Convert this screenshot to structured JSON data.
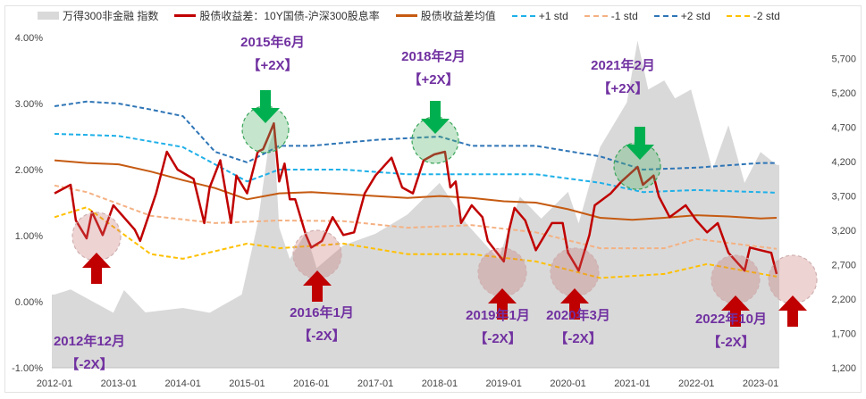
{
  "legend": [
    {
      "label": "万得300非金融 指数",
      "color": "#d9d9d9",
      "style": "area"
    },
    {
      "label": "股债收益差：10Y国债-沪深300股息率",
      "color": "#c00000",
      "style": "solid"
    },
    {
      "label": "股债收益差均值",
      "color": "#c55a11",
      "style": "solid"
    },
    {
      "label": "+1 std",
      "color": "#1fb0e8",
      "style": "dashed"
    },
    {
      "label": "-1 std",
      "color": "#f4b183",
      "style": "dashed"
    },
    {
      "label": "+2 std",
      "color": "#2e75b6",
      "style": "dashed"
    },
    {
      "label": "-2 std",
      "color": "#ffc000",
      "style": "dashed"
    }
  ],
  "chart_data": {
    "type": "line",
    "title": "",
    "x_ticks": [
      "2012-01",
      "2013-01",
      "2014-01",
      "2015-01",
      "2016-01",
      "2017-01",
      "2018-01",
      "2019-01",
      "2020-01",
      "2021-01",
      "2022-01",
      "2023-01"
    ],
    "y_left": {
      "ticks": [
        "-1.00%",
        "0.00%",
        "1.00%",
        "2.00%",
        "3.00%",
        "4.00%"
      ],
      "ylim": [
        -1,
        4
      ],
      "unit": "%"
    },
    "y_right": {
      "ticks": [
        "1,200",
        "1,700",
        "2,200",
        "2,700",
        "3,200",
        "3,700",
        "4,200",
        "4,700",
        "5,200",
        "5,700"
      ],
      "ylim": [
        1200,
        5960
      ]
    },
    "x_range": [
      "2012-01",
      "2023-04"
    ],
    "series": [
      {
        "name": "万得300非金融 指数",
        "axis": "right",
        "kind": "area",
        "points": [
          [
            "2012-01",
            2265
          ],
          [
            "2012-04",
            2340
          ],
          [
            "2012-12",
            2000
          ],
          [
            "2013-02",
            2330
          ],
          [
            "2013-06",
            2005
          ],
          [
            "2014-01",
            2070
          ],
          [
            "2014-06",
            2000
          ],
          [
            "2014-12",
            2265
          ],
          [
            "2015-03",
            3300
          ],
          [
            "2015-05",
            4410
          ],
          [
            "2015-06",
            4650
          ],
          [
            "2015-07",
            3240
          ],
          [
            "2015-09",
            2780
          ],
          [
            "2015-12",
            3170
          ],
          [
            "2016-02",
            2650
          ],
          [
            "2016-07",
            2980
          ],
          [
            "2017-01",
            3150
          ],
          [
            "2017-07",
            3430
          ],
          [
            "2018-01",
            3890
          ],
          [
            "2018-06",
            3300
          ],
          [
            "2018-12",
            2780
          ],
          [
            "2019-04",
            3690
          ],
          [
            "2019-08",
            3370
          ],
          [
            "2020-01",
            3760
          ],
          [
            "2020-03",
            3300
          ],
          [
            "2020-07",
            4410
          ],
          [
            "2020-12",
            5060
          ],
          [
            "2021-02",
            5960
          ],
          [
            "2021-04",
            5250
          ],
          [
            "2021-07",
            5380
          ],
          [
            "2021-09",
            5120
          ],
          [
            "2021-12",
            5250
          ],
          [
            "2022-04",
            4080
          ],
          [
            "2022-07",
            4730
          ],
          [
            "2022-10",
            3890
          ],
          [
            "2023-01",
            4340
          ],
          [
            "2023-04",
            4150
          ]
        ]
      },
      {
        "name": "股债收益差：10Y国债-沪深300股息率",
        "axis": "left",
        "kind": "line",
        "points": [
          [
            "2012-01",
            1.64
          ],
          [
            "2012-04",
            1.77
          ],
          [
            "2012-05",
            1.23
          ],
          [
            "2012-07",
            0.96
          ],
          [
            "2012-08",
            1.36
          ],
          [
            "2012-10",
            1.01
          ],
          [
            "2012-12",
            1.46
          ],
          [
            "2013-04",
            1.09
          ],
          [
            "2013-05",
            0.92
          ],
          [
            "2013-08",
            1.64
          ],
          [
            "2013-10",
            2.27
          ],
          [
            "2013-12",
            2.0
          ],
          [
            "2014-03",
            1.86
          ],
          [
            "2014-05",
            1.19
          ],
          [
            "2014-06",
            1.73
          ],
          [
            "2014-08",
            2.14
          ],
          [
            "2014-10",
            1.19
          ],
          [
            "2014-11",
            1.91
          ],
          [
            "2015-01",
            1.64
          ],
          [
            "2015-03",
            2.27
          ],
          [
            "2015-04",
            2.31
          ],
          [
            "2015-05",
            2.5
          ],
          [
            "2015-06",
            2.7
          ],
          [
            "2015-07",
            1.82
          ],
          [
            "2015-08",
            2.09
          ],
          [
            "2015-09",
            1.55
          ],
          [
            "2015-10",
            1.55
          ],
          [
            "2015-12",
            1.01
          ],
          [
            "2016-01",
            0.82
          ],
          [
            "2016-03",
            0.92
          ],
          [
            "2016-05",
            1.28
          ],
          [
            "2016-07",
            1.01
          ],
          [
            "2016-09",
            1.05
          ],
          [
            "2016-11",
            1.64
          ],
          [
            "2017-01",
            1.91
          ],
          [
            "2017-04",
            2.18
          ],
          [
            "2017-06",
            1.73
          ],
          [
            "2017-08",
            1.64
          ],
          [
            "2017-10",
            2.14
          ],
          [
            "2017-12",
            2.23
          ],
          [
            "2018-02",
            2.27
          ],
          [
            "2018-03",
            1.73
          ],
          [
            "2018-04",
            1.82
          ],
          [
            "2018-05",
            1.19
          ],
          [
            "2018-07",
            1.46
          ],
          [
            "2018-09",
            1.28
          ],
          [
            "2018-10",
            0.92
          ],
          [
            "2019-01",
            0.61
          ],
          [
            "2019-02",
            1.09
          ],
          [
            "2019-03",
            1.42
          ],
          [
            "2019-05",
            1.23
          ],
          [
            "2019-07",
            0.78
          ],
          [
            "2019-10",
            1.19
          ],
          [
            "2019-12",
            1.19
          ],
          [
            "2020-01",
            0.74
          ],
          [
            "2020-03",
            0.47
          ],
          [
            "2020-04",
            0.74
          ],
          [
            "2020-05",
            1.01
          ],
          [
            "2020-06",
            1.46
          ],
          [
            "2020-09",
            1.64
          ],
          [
            "2020-11",
            1.82
          ],
          [
            "2021-02",
            2.04
          ],
          [
            "2021-03",
            1.77
          ],
          [
            "2021-05",
            1.91
          ],
          [
            "2021-06",
            1.59
          ],
          [
            "2021-08",
            1.28
          ],
          [
            "2021-11",
            1.46
          ],
          [
            "2022-01",
            1.23
          ],
          [
            "2022-03",
            1.05
          ],
          [
            "2022-05",
            1.19
          ],
          [
            "2022-07",
            0.74
          ],
          [
            "2022-10",
            0.47
          ],
          [
            "2022-11",
            0.82
          ],
          [
            "2023-01",
            0.78
          ],
          [
            "2023-03",
            0.74
          ],
          [
            "2023-04",
            0.42
          ]
        ]
      },
      {
        "name": "股债收益差均值",
        "axis": "left",
        "kind": "line",
        "points": [
          [
            "2012-01",
            2.14
          ],
          [
            "2012-07",
            2.1
          ],
          [
            "2013-01",
            2.08
          ],
          [
            "2013-07",
            1.97
          ],
          [
            "2014-01",
            1.84
          ],
          [
            "2014-07",
            1.72
          ],
          [
            "2015-01",
            1.55
          ],
          [
            "2015-07",
            1.64
          ],
          [
            "2016-01",
            1.66
          ],
          [
            "2016-07",
            1.63
          ],
          [
            "2017-01",
            1.6
          ],
          [
            "2017-07",
            1.57
          ],
          [
            "2018-01",
            1.6
          ],
          [
            "2018-07",
            1.57
          ],
          [
            "2019-01",
            1.52
          ],
          [
            "2019-07",
            1.5
          ],
          [
            "2020-01",
            1.4
          ],
          [
            "2020-07",
            1.27
          ],
          [
            "2021-01",
            1.24
          ],
          [
            "2021-07",
            1.27
          ],
          [
            "2022-01",
            1.31
          ],
          [
            "2022-07",
            1.29
          ],
          [
            "2023-01",
            1.26
          ],
          [
            "2023-04",
            1.27
          ]
        ]
      },
      {
        "name": "+1 std",
        "axis": "left",
        "kind": "dashed",
        "points": [
          [
            "2012-01",
            2.54
          ],
          [
            "2013-01",
            2.51
          ],
          [
            "2014-01",
            2.34
          ],
          [
            "2015-01",
            1.82
          ],
          [
            "2015-07",
            2.0
          ],
          [
            "2016-07",
            2.0
          ],
          [
            "2017-07",
            1.93
          ],
          [
            "2018-07",
            1.93
          ],
          [
            "2019-07",
            1.93
          ],
          [
            "2020-07",
            1.8
          ],
          [
            "2021-03",
            1.66
          ],
          [
            "2022-01",
            1.69
          ],
          [
            "2023-04",
            1.65
          ]
        ]
      },
      {
        "name": "-1 std",
        "axis": "left",
        "kind": "dashed",
        "points": [
          [
            "2012-01",
            1.76
          ],
          [
            "2012-07",
            1.66
          ],
          [
            "2013-07",
            1.3
          ],
          [
            "2014-07",
            1.19
          ],
          [
            "2015-07",
            1.23
          ],
          [
            "2016-07",
            1.22
          ],
          [
            "2017-07",
            1.12
          ],
          [
            "2018-07",
            1.16
          ],
          [
            "2019-07",
            1.05
          ],
          [
            "2020-07",
            0.81
          ],
          [
            "2021-07",
            0.81
          ],
          [
            "2022-01",
            0.95
          ],
          [
            "2023-04",
            0.8
          ]
        ]
      },
      {
        "name": "+2 std",
        "axis": "left",
        "kind": "dashed",
        "points": [
          [
            "2012-01",
            2.96
          ],
          [
            "2012-07",
            3.03
          ],
          [
            "2013-01",
            3.0
          ],
          [
            "2013-07",
            2.91
          ],
          [
            "2014-01",
            2.81
          ],
          [
            "2014-07",
            2.27
          ],
          [
            "2015-01",
            2.11
          ],
          [
            "2015-07",
            2.36
          ],
          [
            "2016-01",
            2.36
          ],
          [
            "2017-01",
            2.45
          ],
          [
            "2018-01",
            2.5
          ],
          [
            "2018-07",
            2.36
          ],
          [
            "2019-07",
            2.36
          ],
          [
            "2020-07",
            2.2
          ],
          [
            "2021-03",
            2.0
          ],
          [
            "2022-01",
            2.03
          ],
          [
            "2023-01",
            2.1
          ],
          [
            "2023-04",
            2.1
          ]
        ]
      },
      {
        "name": "-2 std",
        "axis": "left",
        "kind": "dashed",
        "points": [
          [
            "2012-01",
            1.28
          ],
          [
            "2012-07",
            1.43
          ],
          [
            "2013-07",
            0.72
          ],
          [
            "2014-01",
            0.65
          ],
          [
            "2015-01",
            0.88
          ],
          [
            "2015-07",
            0.81
          ],
          [
            "2016-07",
            0.88
          ],
          [
            "2017-07",
            0.72
          ],
          [
            "2018-07",
            0.72
          ],
          [
            "2019-07",
            0.61
          ],
          [
            "2020-07",
            0.36
          ],
          [
            "2021-07",
            0.42
          ],
          [
            "2022-03",
            0.57
          ],
          [
            "2023-04",
            0.38
          ]
        ]
      }
    ],
    "annotations": [
      {
        "date": "2012-12",
        "label": "2012年12月",
        "tag": "【-2X】",
        "signal": "low"
      },
      {
        "date": "2015-06",
        "label": "2015年6月",
        "tag": "【+2X】",
        "signal": "high"
      },
      {
        "date": "2016-01",
        "label": "2016年1月",
        "tag": "【-2X】",
        "signal": "low"
      },
      {
        "date": "2018-02",
        "label": "2018年2月",
        "tag": "【+2X】",
        "signal": "high"
      },
      {
        "date": "2019-01",
        "label": "2019年1月",
        "tag": "【-2X】",
        "signal": "low"
      },
      {
        "date": "2020-03",
        "label": "2020年3月",
        "tag": "【-2X】",
        "signal": "low"
      },
      {
        "date": "2021-02",
        "label": "2021年2月",
        "tag": "【+2X】",
        "signal": "high"
      },
      {
        "date": "2022-10",
        "label": "2022年10月",
        "tag": "【-2X】",
        "signal": "low"
      },
      {
        "date": "2023-04",
        "label": "",
        "tag": "",
        "signal": "low"
      }
    ],
    "grid": false,
    "legend_position": "top"
  }
}
